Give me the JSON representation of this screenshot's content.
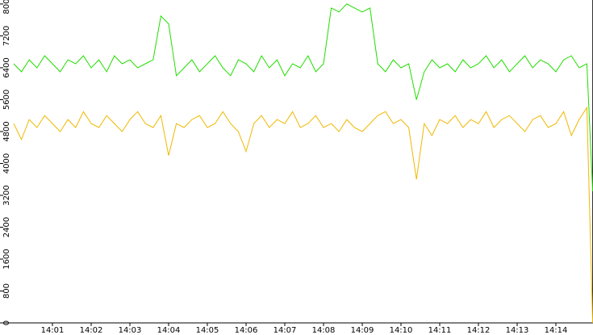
{
  "chart_data": {
    "type": "line",
    "x": [
      840.0,
      840.2,
      840.4,
      840.6,
      840.8,
      841.0,
      841.2,
      841.4,
      841.6,
      841.8,
      842.0,
      842.2,
      842.4,
      842.6,
      842.8,
      843.0,
      843.2,
      843.4,
      843.6,
      843.8,
      844.0,
      844.2,
      844.4,
      844.6,
      844.8,
      845.0,
      845.2,
      845.4,
      845.6,
      845.8,
      846.0,
      846.2,
      846.4,
      846.6,
      846.8,
      847.0,
      847.2,
      847.4,
      847.6,
      847.8,
      848.0,
      848.2,
      848.4,
      848.6,
      848.8,
      849.0,
      849.2,
      849.4,
      849.6,
      849.8,
      850.0,
      850.2,
      850.4,
      850.6,
      850.8,
      851.0,
      851.2,
      851.4,
      851.6,
      851.8,
      852.0,
      852.2,
      852.4,
      852.6,
      852.8,
      853.0,
      853.2,
      853.4,
      853.6,
      853.8,
      854.0,
      854.2,
      854.4,
      854.6,
      854.8,
      854.95
    ],
    "series": [
      {
        "color": "#22dd00",
        "values": [
          6500,
          6300,
          6600,
          6400,
          6700,
          6500,
          6300,
          6600,
          6500,
          6700,
          6400,
          6600,
          6300,
          6700,
          6500,
          6600,
          6400,
          6500,
          6600,
          7700,
          7500,
          6200,
          6400,
          6600,
          6300,
          6500,
          6700,
          6400,
          6200,
          6600,
          6500,
          6300,
          6700,
          6400,
          6600,
          6200,
          6500,
          6400,
          6700,
          6300,
          6500,
          7900,
          7800,
          8000,
          7900,
          7800,
          7900,
          6500,
          6300,
          6600,
          6400,
          6500,
          5600,
          6300,
          6600,
          6400,
          6500,
          6300,
          6600,
          6400,
          6500,
          6700,
          6400,
          6600,
          6300,
          6500,
          6700,
          6400,
          6600,
          6500,
          6300,
          6600,
          6700,
          6400,
          6500,
          3300
        ]
      },
      {
        "color": "#f0b800",
        "values": [
          5000,
          4600,
          5100,
          4900,
          5200,
          5000,
          4800,
          5100,
          4900,
          5300,
          5000,
          4900,
          5200,
          5000,
          4800,
          5100,
          5300,
          5000,
          4900,
          5200,
          4200,
          5000,
          4900,
          5100,
          5200,
          4900,
          5000,
          5300,
          5000,
          4800,
          4300,
          5000,
          5200,
          4900,
          5100,
          5000,
          5300,
          4900,
          5000,
          5200,
          4900,
          5000,
          4800,
          5100,
          4900,
          4800,
          5000,
          5200,
          5300,
          5000,
          5100,
          4900,
          3600,
          5000,
          4700,
          5100,
          5000,
          5200,
          4900,
          5100,
          5000,
          5300,
          4900,
          5100,
          5200,
          5000,
          4800,
          5100,
          5200,
          4900,
          5000,
          5300,
          4700,
          5100,
          5400,
          0
        ]
      }
    ],
    "xlim": [
      840,
      855
    ],
    "xticks": [
      {
        "value": 841,
        "label": "14:01"
      },
      {
        "value": 842,
        "label": "14:02"
      },
      {
        "value": 843,
        "label": "14:03"
      },
      {
        "value": 844,
        "label": "14:04"
      },
      {
        "value": 845,
        "label": "14:05"
      },
      {
        "value": 846,
        "label": "14:06"
      },
      {
        "value": 847,
        "label": "14:07"
      },
      {
        "value": 848,
        "label": "14:08"
      },
      {
        "value": 849,
        "label": "14:09"
      },
      {
        "value": 850,
        "label": "14:10"
      },
      {
        "value": 851,
        "label": "14:11"
      },
      {
        "value": 852,
        "label": "14:12"
      },
      {
        "value": 853,
        "label": "14:13"
      },
      {
        "value": 854,
        "label": "14:14"
      }
    ],
    "ylim": [
      0,
      8100
    ],
    "yticks": [
      0,
      800,
      1600,
      2400,
      3200,
      4000,
      4800,
      5600,
      6400,
      7200,
      8000
    ]
  }
}
